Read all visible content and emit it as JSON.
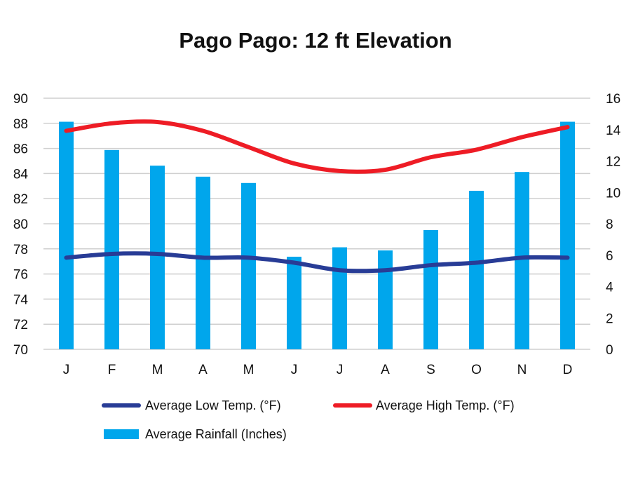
{
  "chart_data": {
    "type": "bar+line",
    "title": "Pago Pago: 12 ft Elevation",
    "categories": [
      "J",
      "F",
      "M",
      "A",
      "M",
      "J",
      "J",
      "A",
      "S",
      "O",
      "N",
      "D"
    ],
    "y_left": {
      "min": 70,
      "max": 90,
      "step": 2,
      "ticks": [
        "90",
        "88",
        "86",
        "84",
        "82",
        "80",
        "78",
        "76",
        "74",
        "72",
        "70"
      ]
    },
    "y_right": {
      "min": 0,
      "max": 16,
      "step": 2,
      "ticks": [
        "16",
        "14",
        "12",
        "10",
        "8",
        "6",
        "4",
        "2",
        "0"
      ]
    },
    "grid": true,
    "legend_position": "bottom",
    "series": [
      {
        "name": "Average Low Temp. (°F)",
        "kind": "line",
        "axis": "left",
        "color": "#283C96",
        "values": [
          77.3,
          77.6,
          77.6,
          77.3,
          77.3,
          76.9,
          76.3,
          76.3,
          76.7,
          76.9,
          77.3,
          77.3
        ]
      },
      {
        "name": "Average High Temp. (°F)",
        "kind": "line",
        "axis": "left",
        "color": "#EE1C25",
        "values": [
          87.4,
          88.0,
          88.1,
          87.4,
          86.1,
          84.8,
          84.2,
          84.3,
          85.3,
          85.9,
          86.9,
          87.7
        ]
      },
      {
        "name": "Average Rainfall (Inches)",
        "kind": "bar",
        "axis": "right",
        "color": "#00A6EC",
        "values": [
          14.5,
          12.7,
          11.7,
          11.0,
          10.6,
          5.9,
          6.5,
          6.3,
          7.6,
          10.1,
          11.3,
          14.5
        ]
      }
    ]
  }
}
